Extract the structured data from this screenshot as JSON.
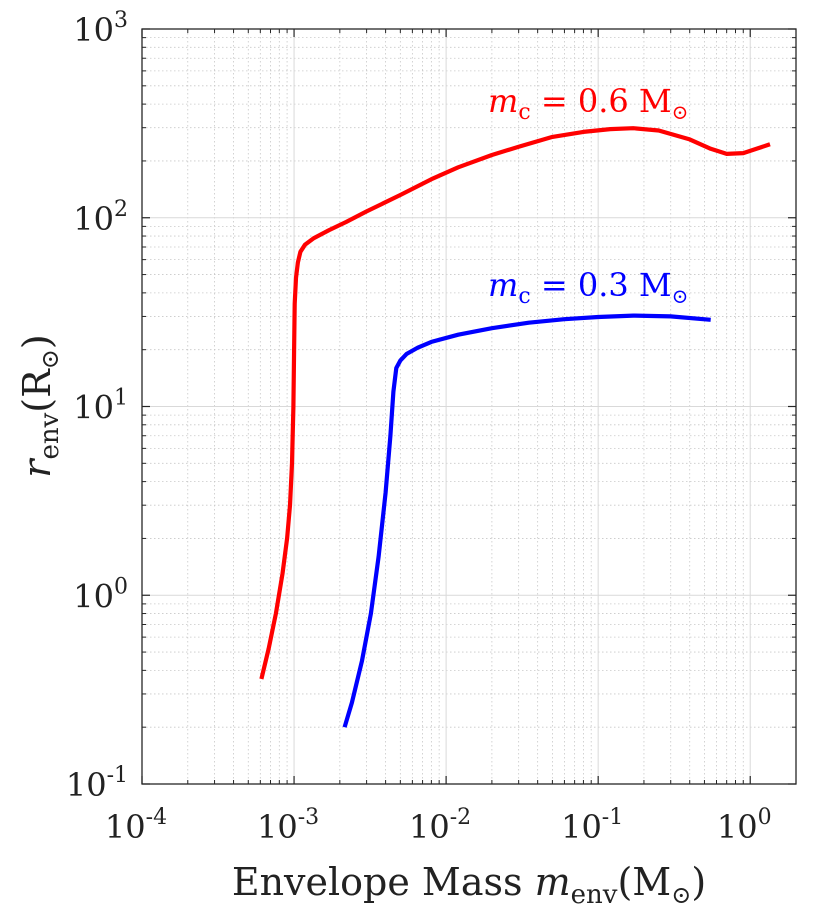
{
  "chart_data": {
    "type": "line",
    "x_scale": "log",
    "y_scale": "log",
    "xlim": [
      0.0001,
      2
    ],
    "ylim": [
      0.1,
      1000
    ],
    "x_ticks": [
      {
        "value": 0.0001,
        "base": "10",
        "exp": "-4"
      },
      {
        "value": 0.001,
        "base": "10",
        "exp": "-3"
      },
      {
        "value": 0.01,
        "base": "10",
        "exp": "-2"
      },
      {
        "value": 0.1,
        "base": "10",
        "exp": "-1"
      },
      {
        "value": 1,
        "base": "10",
        "exp": "0"
      }
    ],
    "y_ticks": [
      {
        "value": 0.1,
        "base": "10",
        "exp": "-1"
      },
      {
        "value": 1,
        "base": "10",
        "exp": "0"
      },
      {
        "value": 10,
        "base": "10",
        "exp": "1"
      },
      {
        "value": 100,
        "base": "10",
        "exp": "2"
      },
      {
        "value": 1000,
        "base": "10",
        "exp": "3"
      }
    ],
    "xlabel": {
      "text": "Envelope Mass ",
      "var": "m",
      "sub": "env",
      "unit": "(M",
      "sun": "⊙",
      "close": ")"
    },
    "ylabel": {
      "var": "r",
      "sub": "env",
      "unit": "(R",
      "sun": "⊙",
      "close": ")"
    },
    "grid": true,
    "series": [
      {
        "name": "m_c = 0.6 M_sun",
        "color": "#ff0000",
        "label": {
          "var": "m",
          "sub": "c",
          "eq": " = 0.6 M",
          "sun": "⊙"
        },
        "x": [
          0.00061,
          0.00068,
          0.00076,
          0.00084,
          0.0009,
          0.00094,
          0.00097,
          0.00099,
          0.001,
          0.00101,
          0.00103,
          0.00106,
          0.0011,
          0.00118,
          0.00135,
          0.0017,
          0.0022,
          0.003,
          0.005,
          0.008,
          0.012,
          0.02,
          0.03,
          0.05,
          0.08,
          0.12,
          0.17,
          0.25,
          0.4,
          0.55,
          0.7,
          0.9,
          1.1,
          1.35
        ],
        "y": [
          0.36,
          0.52,
          0.8,
          1.3,
          2.0,
          3.0,
          5.0,
          10,
          20,
          35,
          48,
          58,
          66,
          72,
          78,
          86,
          95,
          108,
          132,
          160,
          185,
          215,
          238,
          268,
          285,
          295,
          298,
          290,
          260,
          232,
          218,
          220,
          232,
          245
        ]
      },
      {
        "name": "m_c = 0.3 M_sun",
        "color": "#0000ff",
        "label": {
          "var": "m",
          "sub": "c",
          "eq": " = 0.3 M",
          "sun": "⊙"
        },
        "x": [
          0.00215,
          0.0024,
          0.0028,
          0.0032,
          0.0036,
          0.004,
          0.0043,
          0.0045,
          0.0047,
          0.005,
          0.0055,
          0.0065,
          0.008,
          0.012,
          0.02,
          0.035,
          0.06,
          0.1,
          0.17,
          0.3,
          0.55
        ],
        "y": [
          0.2,
          0.27,
          0.45,
          0.8,
          1.6,
          3.5,
          7.0,
          12,
          16,
          17.5,
          19,
          20.5,
          22,
          24,
          26,
          27.8,
          29,
          29.8,
          30.3,
          30,
          28.8
        ]
      }
    ]
  }
}
